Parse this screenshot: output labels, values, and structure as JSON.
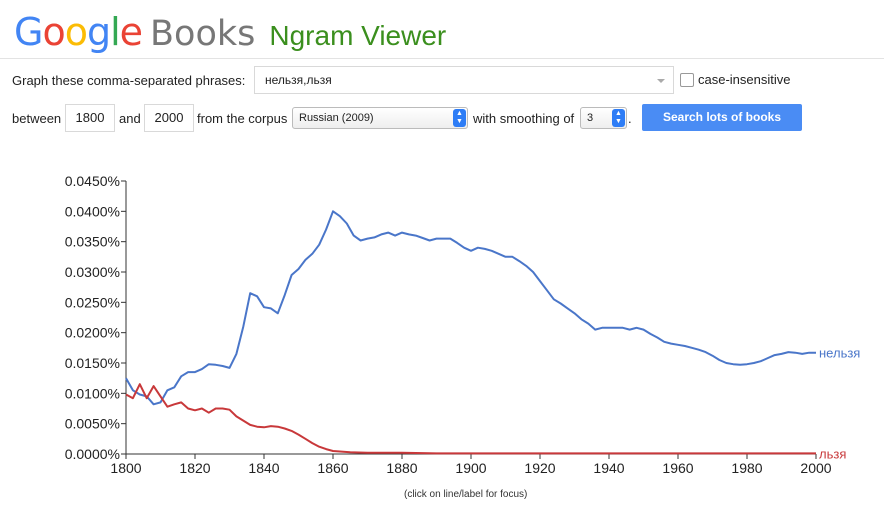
{
  "header": {
    "logo_google": "Google",
    "logo_books": "Books",
    "app_title": "Ngram Viewer"
  },
  "query": {
    "phrases_label": "Graph these comma-separated phrases:",
    "phrases_value": "нельзя,льзя",
    "case_insensitive_label": "case-insensitive",
    "case_insensitive_checked": false
  },
  "range": {
    "between_label": "between",
    "start_year": "1800",
    "and_label": "and",
    "end_year": "2000",
    "corpus_label": "from the corpus",
    "corpus_value": "Russian (2009)",
    "smoothing_label": "with smoothing of",
    "smoothing_value": "3",
    "period": ".",
    "search_button": "Search lots of books"
  },
  "footer_note": "(click on line/label for focus)",
  "colors": {
    "series1": "#4a76c9",
    "series2": "#c8383a",
    "accent_button": "#4a8cf4",
    "ngram_title": "#3b8f1e"
  },
  "chart_data": {
    "type": "line",
    "x_tick_labels": [
      "1800",
      "1820",
      "1840",
      "1860",
      "1880",
      "1900",
      "1920",
      "1940",
      "1960",
      "1980",
      "2000"
    ],
    "y_tick_labels": [
      "0.0000%",
      "0.0050%",
      "0.0100%",
      "0.0150%",
      "0.0200%",
      "0.0250%",
      "0.0300%",
      "0.0350%",
      "0.0400%",
      "0.0450%"
    ],
    "xlim": [
      1800,
      2000
    ],
    "ylim": [
      0,
      0.045
    ],
    "grid": false,
    "series": [
      {
        "name": "нельзя",
        "color": "#4a76c9",
        "x": [
          1800,
          1802,
          1804,
          1806,
          1808,
          1810,
          1812,
          1814,
          1816,
          1818,
          1820,
          1822,
          1824,
          1826,
          1828,
          1830,
          1832,
          1834,
          1836,
          1838,
          1840,
          1842,
          1844,
          1846,
          1848,
          1850,
          1852,
          1854,
          1856,
          1858,
          1860,
          1862,
          1864,
          1866,
          1868,
          1870,
          1872,
          1874,
          1876,
          1878,
          1880,
          1882,
          1884,
          1886,
          1888,
          1890,
          1892,
          1894,
          1896,
          1898,
          1900,
          1902,
          1904,
          1906,
          1908,
          1910,
          1912,
          1914,
          1916,
          1918,
          1920,
          1922,
          1924,
          1926,
          1928,
          1930,
          1932,
          1934,
          1936,
          1938,
          1940,
          1942,
          1944,
          1946,
          1948,
          1950,
          1952,
          1954,
          1956,
          1958,
          1960,
          1962,
          1964,
          1966,
          1968,
          1970,
          1972,
          1974,
          1976,
          1978,
          1980,
          1982,
          1984,
          1986,
          1988,
          1990,
          1992,
          1994,
          1996,
          1998,
          2000
        ],
        "y": [
          0.0125,
          0.0105,
          0.0098,
          0.0095,
          0.0082,
          0.0085,
          0.0105,
          0.011,
          0.0128,
          0.0135,
          0.0135,
          0.014,
          0.0148,
          0.0147,
          0.0145,
          0.0142,
          0.0165,
          0.021,
          0.0265,
          0.026,
          0.0242,
          0.024,
          0.0232,
          0.0262,
          0.0295,
          0.0305,
          0.032,
          0.033,
          0.0345,
          0.037,
          0.04,
          0.0392,
          0.038,
          0.036,
          0.0352,
          0.0355,
          0.0357,
          0.0362,
          0.0365,
          0.036,
          0.0365,
          0.0362,
          0.036,
          0.0356,
          0.0352,
          0.0355,
          0.0355,
          0.0355,
          0.0348,
          0.034,
          0.0335,
          0.034,
          0.0338,
          0.0335,
          0.033,
          0.0325,
          0.0325,
          0.0318,
          0.031,
          0.03,
          0.0285,
          0.027,
          0.0255,
          0.0248,
          0.024,
          0.0232,
          0.0222,
          0.0215,
          0.0205,
          0.0208,
          0.0208,
          0.0208,
          0.0208,
          0.0205,
          0.0208,
          0.0205,
          0.0198,
          0.0192,
          0.0185,
          0.0182,
          0.018,
          0.0178,
          0.0175,
          0.0172,
          0.0168,
          0.0162,
          0.0155,
          0.015,
          0.0148,
          0.0147,
          0.0148,
          0.015,
          0.0153,
          0.0158,
          0.0163,
          0.0165,
          0.0168,
          0.0167,
          0.0165,
          0.0167,
          0.0167
        ]
      },
      {
        "name": "льзя",
        "color": "#c8383a",
        "x": [
          1800,
          1802,
          1804,
          1806,
          1808,
          1810,
          1812,
          1814,
          1816,
          1818,
          1820,
          1822,
          1824,
          1826,
          1828,
          1830,
          1832,
          1834,
          1836,
          1838,
          1840,
          1842,
          1844,
          1846,
          1848,
          1850,
          1852,
          1854,
          1856,
          1858,
          1860,
          1865,
          1870,
          1880,
          1890,
          1900,
          1920,
          1940,
          1960,
          1980,
          2000
        ],
        "y": [
          0.0098,
          0.0092,
          0.0115,
          0.0092,
          0.0112,
          0.0095,
          0.0078,
          0.0082,
          0.0085,
          0.0075,
          0.0072,
          0.0075,
          0.0068,
          0.0075,
          0.0075,
          0.0073,
          0.0062,
          0.0055,
          0.0048,
          0.0045,
          0.0044,
          0.0046,
          0.0045,
          0.0042,
          0.0038,
          0.0032,
          0.0025,
          0.0018,
          0.0012,
          0.0008,
          0.0005,
          0.0003,
          0.0002,
          0.0002,
          0.0001,
          0.0001,
          0.0001,
          0.0001,
          0.0001,
          0.0001,
          0.0001
        ]
      }
    ]
  }
}
